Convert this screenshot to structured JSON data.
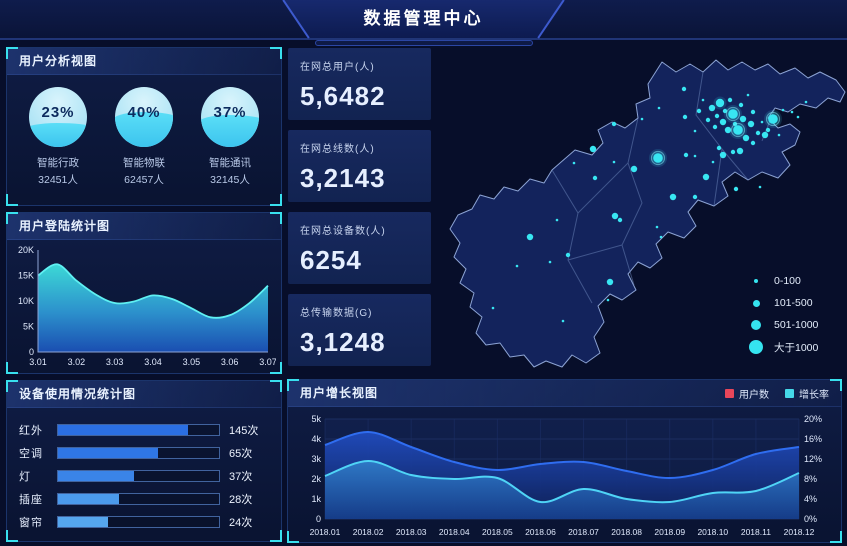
{
  "header": {
    "title": "数据管理中心"
  },
  "panels": {
    "user_analysis": {
      "title": "用户分析视图",
      "gauges": [
        {
          "percent": "23%",
          "name": "智能行政",
          "count": "32451人",
          "level": 40
        },
        {
          "percent": "40%",
          "name": "智能物联",
          "count": "62457人",
          "level": 58
        },
        {
          "percent": "37%",
          "name": "智能通讯",
          "count": "32145人",
          "level": 53
        }
      ]
    },
    "login_stats": {
      "title": "用户登陆统计图"
    },
    "device_usage": {
      "title": "设备使用情况统计图"
    },
    "user_growth": {
      "title": "用户增长视图"
    },
    "stats_cards": [
      {
        "label": "在网总用户(人)",
        "value": "5,6482"
      },
      {
        "label": "在网总线数(人)",
        "value": "3,2143"
      },
      {
        "label": "在网总设备数(人)",
        "value": "6254"
      },
      {
        "label": "总传输数据(G)",
        "value": "3,1248"
      }
    ]
  },
  "colors": {
    "accent_cyan": "#35e4f0",
    "accent_blue": "#2f6df0",
    "legend_red": "#e8465a",
    "panel_border": "#1b346b",
    "background": "#070e2a"
  },
  "chart_data": [
    {
      "id": "login_trend",
      "type": "area",
      "title": "用户登陆统计图",
      "x_ticks": [
        "3.01",
        "3.02",
        "3.03",
        "3.04",
        "3.05",
        "3.06",
        "3.07"
      ],
      "y_ticks": [
        "0",
        "5K",
        "10K",
        "15K",
        "20K"
      ],
      "ylim": [
        0,
        20000
      ],
      "xlim": [
        3.01,
        3.07
      ],
      "points_x": [
        3.01,
        3.015,
        3.02,
        3.025,
        3.03,
        3.035,
        3.04,
        3.045,
        3.05,
        3.055,
        3.06,
        3.065,
        3.07
      ],
      "points_y": [
        15000,
        17200,
        14000,
        11300,
        9600,
        9900,
        11100,
        10400,
        8600,
        6800,
        7200,
        9500,
        13000
      ],
      "grid": false
    },
    {
      "id": "device_usage",
      "type": "bar",
      "title": "设备使用情况统计图",
      "categories": [
        "红外",
        "空调",
        "灯",
        "插座",
        "窗帘"
      ],
      "values": [
        145,
        65,
        37,
        28,
        24
      ],
      "value_labels": [
        "145次",
        "65次",
        "37次",
        "28次",
        "24次"
      ],
      "fill_pct": [
        81,
        62,
        47,
        38,
        31
      ],
      "bar_colors": [
        "#2b6fe3",
        "#2f76e5",
        "#3a84e8",
        "#4b9aec",
        "#55a6ee"
      ]
    },
    {
      "id": "user_growth",
      "type": "area",
      "title": "用户增长视图",
      "categories": [
        "2018.01",
        "2018.02",
        "2018.03",
        "2018.04",
        "2018.05",
        "2018.06",
        "2018.07",
        "2018.08",
        "2018.09",
        "2018.10",
        "2018.11",
        "2018.12"
      ],
      "series": [
        {
          "name": "用户数",
          "axis": "left",
          "color": "#2f6df0",
          "values": [
            3700,
            4350,
            3600,
            2850,
            2450,
            2750,
            2850,
            2400,
            2050,
            2450,
            3250,
            3600
          ]
        },
        {
          "name": "增长率",
          "axis": "right",
          "color": "#4fd4f6",
          "values": [
            8.6,
            11.6,
            8.8,
            8.0,
            8.2,
            3.4,
            6.0,
            4.0,
            3.4,
            5.2,
            5.6,
            9.2
          ]
        }
      ],
      "left_ticks": [
        "0",
        "1k",
        "2k",
        "3k",
        "4k",
        "5k"
      ],
      "left_lim": [
        0,
        5000
      ],
      "right_ticks": [
        "0%",
        "4%",
        "8%",
        "12%",
        "16%",
        "20%"
      ],
      "right_lim": [
        0,
        20
      ],
      "legend_position": "top-right",
      "grid": true
    },
    {
      "id": "map_bubbles",
      "type": "scatter",
      "legend": [
        {
          "label": "0-100",
          "size": 1
        },
        {
          "label": "101-500",
          "size": 2
        },
        {
          "label": "501-1000",
          "size": 3
        },
        {
          "label": "大于1000",
          "size": 4
        }
      ],
      "dots": [
        [
          184,
          79,
          2
        ],
        [
          212,
          74,
          1
        ],
        [
          229,
          63,
          1
        ],
        [
          254,
          44,
          2
        ],
        [
          255,
          72,
          2
        ],
        [
          265,
          86,
          1
        ],
        [
          269,
          66,
          2
        ],
        [
          273,
          55,
          1
        ],
        [
          278,
          75,
          2
        ],
        [
          282,
          63,
          3
        ],
        [
          285,
          82,
          2
        ],
        [
          287,
          71,
          2
        ],
        [
          290,
          58,
          4
        ],
        [
          293,
          77,
          3
        ],
        [
          295,
          66,
          2
        ],
        [
          298,
          85,
          3
        ],
        [
          300,
          55,
          2
        ],
        [
          303,
          69,
          5
        ],
        [
          305,
          79,
          2
        ],
        [
          308,
          85,
          5
        ],
        [
          311,
          60,
          2
        ],
        [
          313,
          74,
          3
        ],
        [
          316,
          93,
          3
        ],
        [
          318,
          50,
          1
        ],
        [
          321,
          79,
          3
        ],
        [
          323,
          67,
          2
        ],
        [
          328,
          88,
          2
        ],
        [
          332,
          77,
          1
        ],
        [
          335,
          90,
          3
        ],
        [
          338,
          85,
          2
        ],
        [
          343,
          74,
          5
        ],
        [
          349,
          90,
          1
        ],
        [
          353,
          65,
          1
        ],
        [
          362,
          67,
          1
        ],
        [
          368,
          72,
          1
        ],
        [
          376,
          57,
          1
        ],
        [
          289,
          103,
          2
        ],
        [
          293,
          110,
          3
        ],
        [
          283,
          117,
          1
        ],
        [
          303,
          107,
          2
        ],
        [
          310,
          106,
          3
        ],
        [
          323,
          98,
          2
        ],
        [
          265,
          111,
          1
        ],
        [
          256,
          110,
          2
        ],
        [
          276,
          132,
          3
        ],
        [
          228,
          113,
          5
        ],
        [
          204,
          124,
          3
        ],
        [
          184,
          117,
          1
        ],
        [
          165,
          133,
          2
        ],
        [
          163,
          104,
          3
        ],
        [
          144,
          118,
          1
        ],
        [
          243,
          152,
          3
        ],
        [
          265,
          152,
          2
        ],
        [
          306,
          144,
          2
        ],
        [
          330,
          142,
          1
        ],
        [
          185,
          171,
          3
        ],
        [
          190,
          175,
          2
        ],
        [
          227,
          182,
          1
        ],
        [
          231,
          192,
          1
        ],
        [
          100,
          192,
          3
        ],
        [
          127,
          175,
          1
        ],
        [
          138,
          210,
          2
        ],
        [
          87,
          221,
          1
        ],
        [
          120,
          217,
          1
        ],
        [
          180,
          237,
          3
        ],
        [
          178,
          255,
          1
        ],
        [
          63,
          263,
          1
        ],
        [
          133,
          276,
          1
        ]
      ]
    }
  ]
}
